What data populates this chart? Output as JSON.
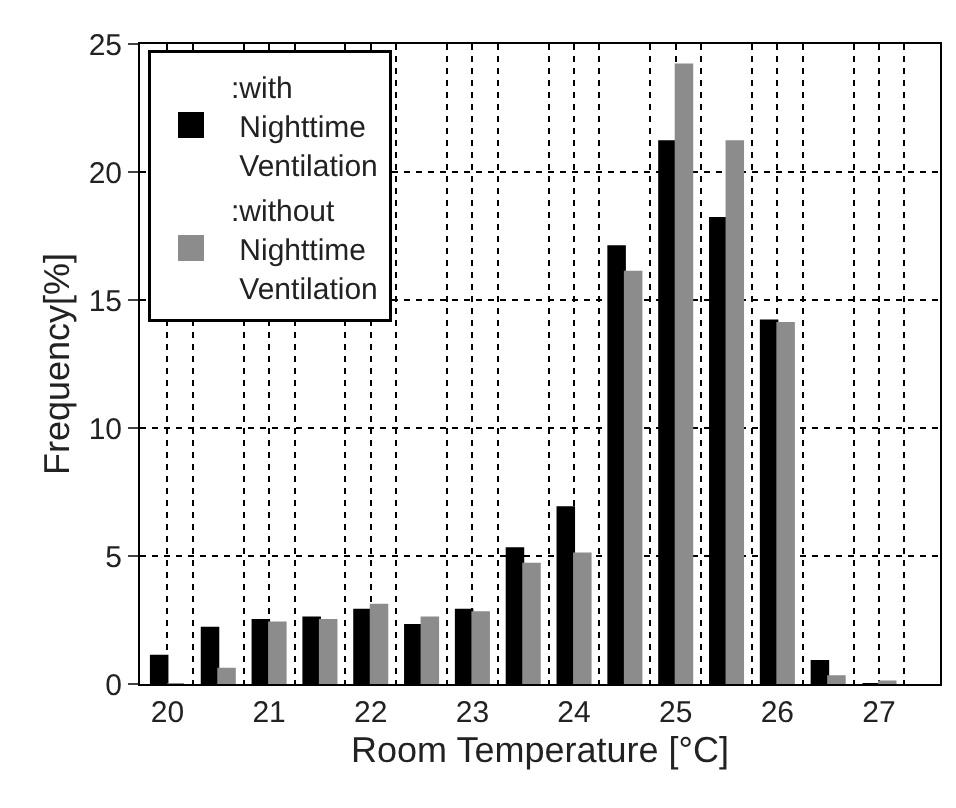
{
  "chart_data": {
    "type": "bar",
    "xlabel": "Room Temperature [°C]",
    "ylabel": "Frequency[%]",
    "x": [
      20,
      20.5,
      21,
      21.5,
      22,
      22.5,
      23,
      23.5,
      24,
      24.5,
      25,
      25.5,
      26,
      26.5,
      27
    ],
    "series": [
      {
        "name": ":with Nighttime Ventilation",
        "color": "#000000",
        "values": [
          1.1,
          2.2,
          2.5,
          2.6,
          2.9,
          2.3,
          2.9,
          5.3,
          6.9,
          17.1,
          21.2,
          18.2,
          14.2,
          0.9,
          0
        ]
      },
      {
        "name": ":without Nighttime Ventilation",
        "color": "#8c8c8c",
        "values": [
          0,
          0.6,
          2.4,
          2.5,
          3.1,
          2.6,
          2.8,
          4.7,
          5.1,
          16.1,
          24.2,
          21.2,
          14.1,
          0.3,
          0.1
        ]
      }
    ],
    "xlim": [
      19.73,
      27.6
    ],
    "xticks": [
      20,
      {
        "value": 20.25,
        "label": null
      },
      {
        "value": 20.75,
        "label": null
      },
      21,
      {
        "value": 21.25,
        "label": null
      },
      {
        "value": 21.75,
        "label": null
      },
      22,
      {
        "value": 22.25,
        "label": null
      },
      {
        "value": 22.75,
        "label": null
      },
      23,
      {
        "value": 23.25,
        "label": null
      },
      {
        "value": 23.75,
        "label": null
      },
      24,
      {
        "value": 24.25,
        "label": null
      },
      {
        "value": 24.75,
        "label": null
      },
      25,
      {
        "value": 25.25,
        "label": null
      },
      {
        "value": 25.75,
        "label": null
      },
      26,
      {
        "value": 26.25,
        "label": null
      },
      {
        "value": 26.75,
        "label": null
      },
      27,
      {
        "value": 27.25,
        "label": null
      }
    ],
    "ylim": [
      0,
      25
    ],
    "yticks": [
      0,
      5,
      10,
      15,
      20,
      25
    ],
    "grid": true,
    "legend": "top left"
  }
}
